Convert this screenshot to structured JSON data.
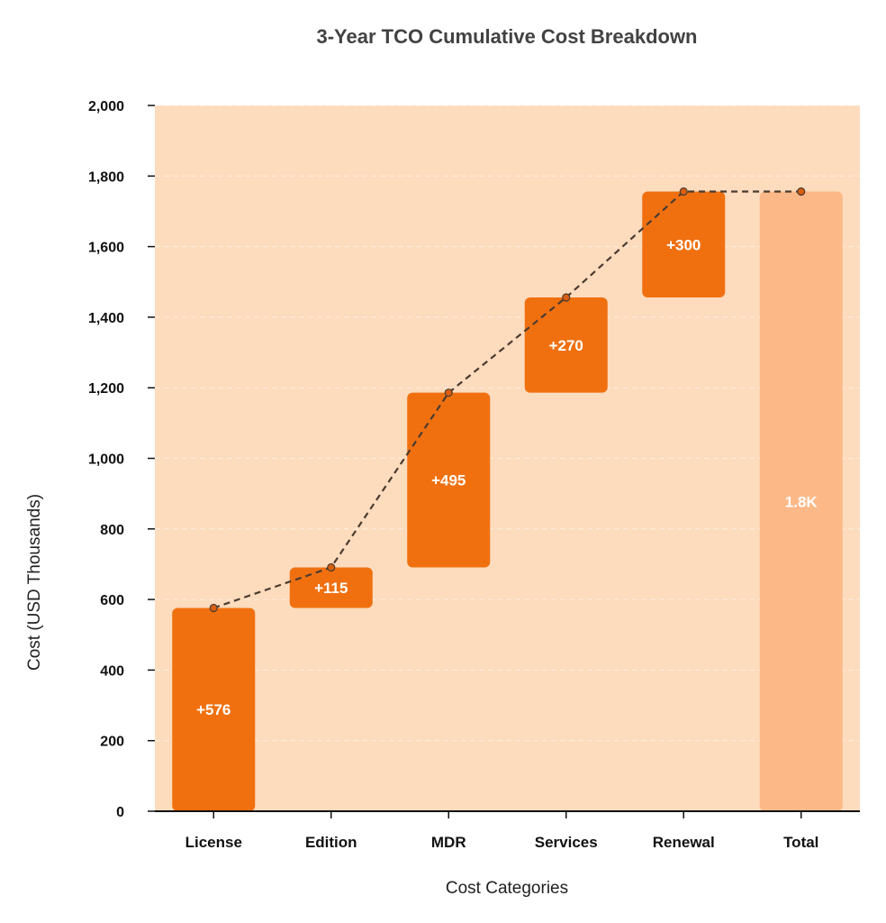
{
  "chart_data": {
    "type": "bar",
    "subtype": "waterfall",
    "title": "3-Year TCO Cumulative Cost Breakdown",
    "xlabel": "Cost Categories",
    "ylabel": "Cost (USD Thousands)",
    "ylim": [
      0,
      2000
    ],
    "yticks": [
      0,
      200,
      400,
      600,
      800,
      1000,
      1200,
      1400,
      1600,
      1800,
      2000
    ],
    "ytick_labels": [
      "0",
      "200",
      "400",
      "600",
      "800",
      "1,000",
      "1,200",
      "1,400",
      "1,600",
      "1,800",
      "2,000"
    ],
    "categories": [
      "License",
      "Edition",
      "MDR",
      "Services",
      "Renewal",
      "Total"
    ],
    "increments": [
      576,
      115,
      495,
      270,
      300
    ],
    "bar_labels": [
      "+576",
      "+115",
      "+495",
      "+270",
      "+300",
      "1.8K"
    ],
    "total": 1756,
    "cumulative_line": [
      576,
      691,
      1186,
      1456,
      1756,
      1756
    ],
    "grid": true,
    "legend": "none",
    "colors": {
      "plot_background": "#fddbbd",
      "increment_bar": "#f07010",
      "total_bar": "#fdb888",
      "connector_line": "#4a3b30",
      "marker": "#d85f0f"
    }
  }
}
